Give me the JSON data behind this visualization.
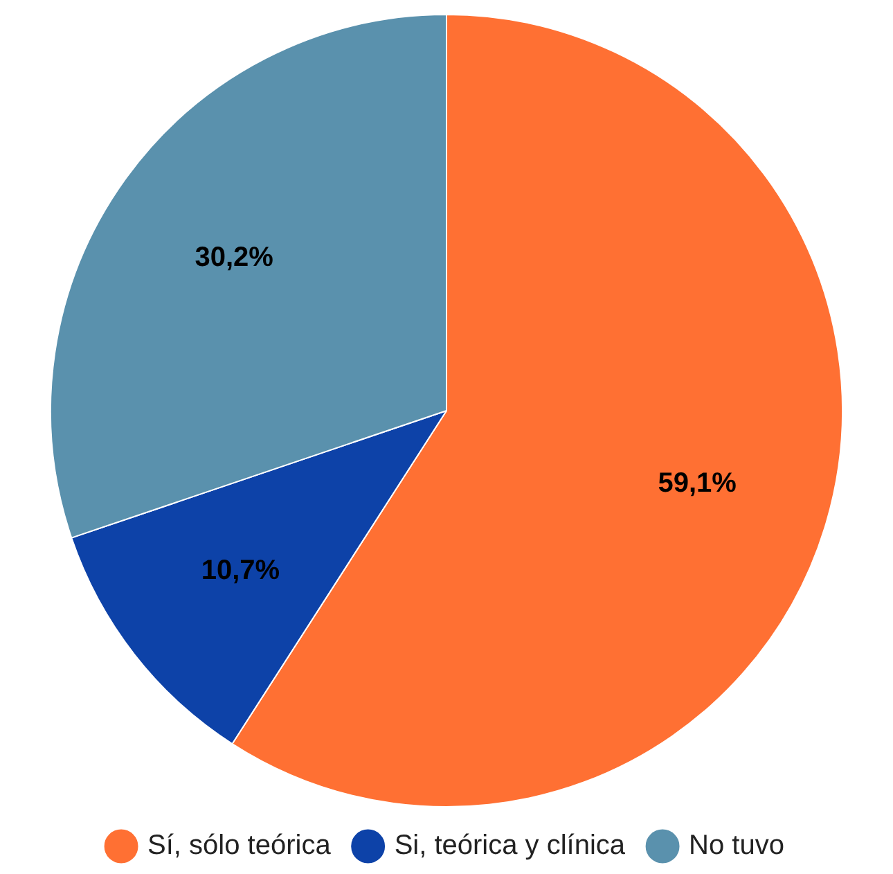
{
  "chart_data": {
    "type": "pie",
    "categories": [
      "Sí, sólo teórica",
      "Si, teórica y clínica",
      "No tuvo"
    ],
    "values": [
      59.1,
      10.7,
      30.2
    ],
    "colors": [
      "#ff7033",
      "#0d42a8",
      "#5a91ad"
    ],
    "value_labels": [
      "59,1%",
      "10,7%",
      "30,2%"
    ],
    "legend": "bottom"
  }
}
